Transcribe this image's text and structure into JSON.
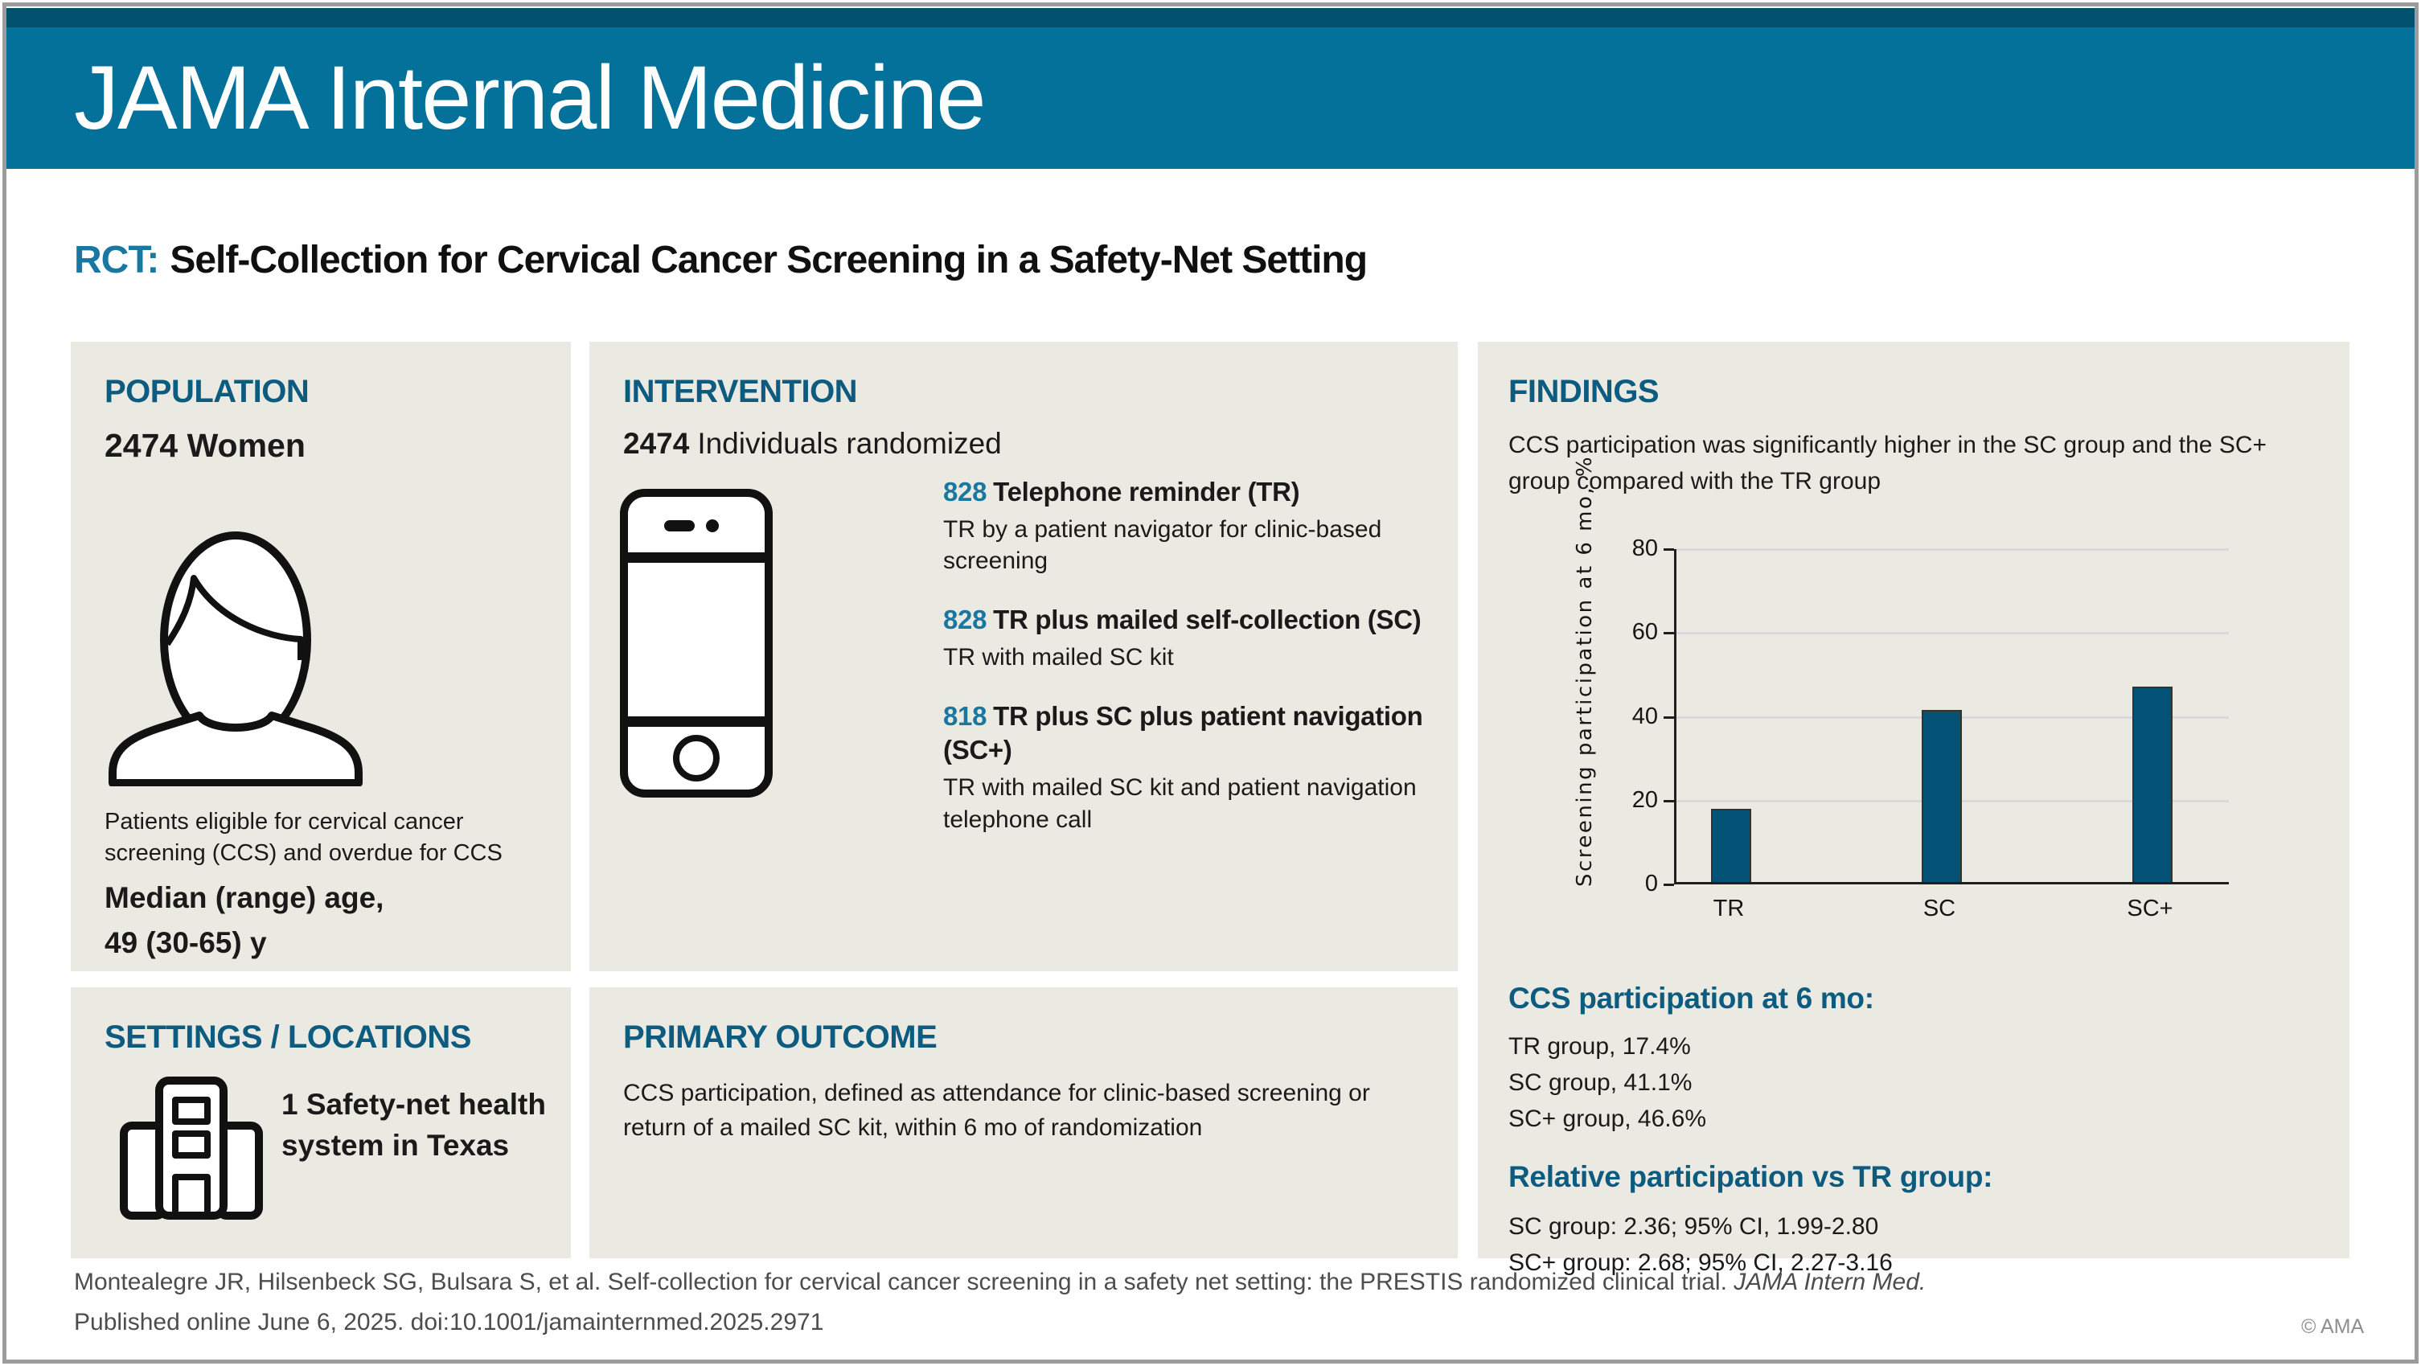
{
  "header": {
    "journal": "JAMA Internal Medicine"
  },
  "title": {
    "tag": "RCT:",
    "text": "Self-Collection for Cervical Cancer Screening in a Safety-Net Setting"
  },
  "population": {
    "heading": "POPULATION",
    "count": "2474 Women",
    "description": "Patients eligible for cervical cancer screening (CCS) and overdue for CCS",
    "age_line1": "Median (range) age,",
    "age_line2": "49 (30-65) y"
  },
  "settings": {
    "heading": "SETTINGS / LOCATIONS",
    "text": "1 Safety-net health system in Texas"
  },
  "intervention": {
    "heading": "INTERVENTION",
    "count": "2474",
    "count_label": "Individuals randomized",
    "arms": [
      {
        "n": "828",
        "title": "Telephone reminder (TR)",
        "description": "TR by a patient navigator for clinic-based screening"
      },
      {
        "n": "828",
        "title": "TR plus mailed self-collection (SC)",
        "description": "TR with mailed SC kit"
      },
      {
        "n": "818",
        "title": "TR plus SC plus patient navigation (SC+)",
        "description": "TR with mailed SC kit and patient navigation telephone call"
      }
    ]
  },
  "primary_outcome": {
    "heading": "PRIMARY OUTCOME",
    "text": "CCS participation, defined as attendance for clinic-based screening or return of a mailed SC kit, within 6 mo of randomization"
  },
  "findings": {
    "heading": "FINDINGS",
    "summary": "CCS participation was significantly higher in the SC group and the SC+ group compared with the TR group",
    "participation_heading": "CCS participation at 6 mo:",
    "participation_lines": [
      "TR group, 17.4%",
      "SC group, 41.1%",
      "SC+ group, 46.6%"
    ],
    "relative_heading": "Relative participation vs TR group:",
    "relative_lines": [
      "SC group: 2.36; 95% CI, 1.99-2.80",
      "SC+ group: 2.68; 95% CI, 2.27-3.16"
    ]
  },
  "chart_data": {
    "type": "bar",
    "categories": [
      "TR",
      "SC",
      "SC+"
    ],
    "values": [
      17.4,
      41.1,
      46.6
    ],
    "title": "",
    "xlabel": "",
    "ylabel": "Screening participation at 6 mo, %",
    "ylim": [
      0,
      80
    ],
    "yticks": [
      0,
      20,
      40,
      60,
      80
    ],
    "grid": true,
    "legend": "none",
    "bar_color": "#045377"
  },
  "footer": {
    "citation_plain": "Montealegre JR, Hilsenbeck SG, Bulsara S, et al. Self-collection for cervical cancer screening in a safety net setting: the PRESTIS randomized clinical trial. ",
    "citation_italic": "JAMA Intern Med.",
    "published": "Published online June 6, 2025. doi:10.1001/jamainternmed.2025.2971",
    "copyright": "© AMA"
  },
  "colors": {
    "header_band": "#04719a",
    "header_strip": "#00506e",
    "panel_background": "#ebeae2",
    "heading_teal": "#0d5c80",
    "accent_teal": "#1a78a0",
    "bar_fill": "#045377"
  }
}
